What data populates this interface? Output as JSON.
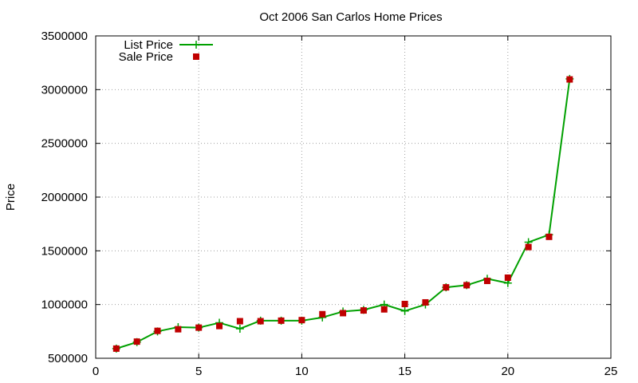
{
  "chart_data": {
    "type": "line",
    "title": "Oct 2006 San Carlos Home Prices",
    "xlabel": "",
    "ylabel": "Price",
    "xlim": [
      0,
      25
    ],
    "ylim": [
      500000,
      3500000
    ],
    "xticks": [
      0,
      5,
      10,
      15,
      20,
      25
    ],
    "yticks": [
      500000,
      1000000,
      1500000,
      2000000,
      2500000,
      3000000,
      3500000
    ],
    "grid": true,
    "legend_position": "top-left",
    "x": [
      1,
      2,
      3,
      4,
      5,
      6,
      7,
      8,
      9,
      10,
      11,
      12,
      13,
      14,
      15,
      16,
      17,
      18,
      19,
      20,
      21,
      22,
      23
    ],
    "series": [
      {
        "name": "List Price",
        "style": "line-plus",
        "color": "#00a000",
        "values": [
          590000,
          650000,
          750000,
          790000,
          785000,
          830000,
          775000,
          850000,
          850000,
          850000,
          880000,
          935000,
          950000,
          1000000,
          940000,
          1000000,
          1160000,
          1180000,
          1240000,
          1200000,
          1580000,
          1650000,
          3100000
        ]
      },
      {
        "name": "Sale Price",
        "style": "square",
        "color": "#c00000",
        "values": [
          590000,
          655000,
          755000,
          770000,
          785000,
          800000,
          845000,
          845000,
          850000,
          855000,
          910000,
          920000,
          945000,
          955000,
          1005000,
          1020000,
          1160000,
          1180000,
          1220000,
          1250000,
          1535000,
          1630000,
          3095000
        ]
      }
    ]
  }
}
